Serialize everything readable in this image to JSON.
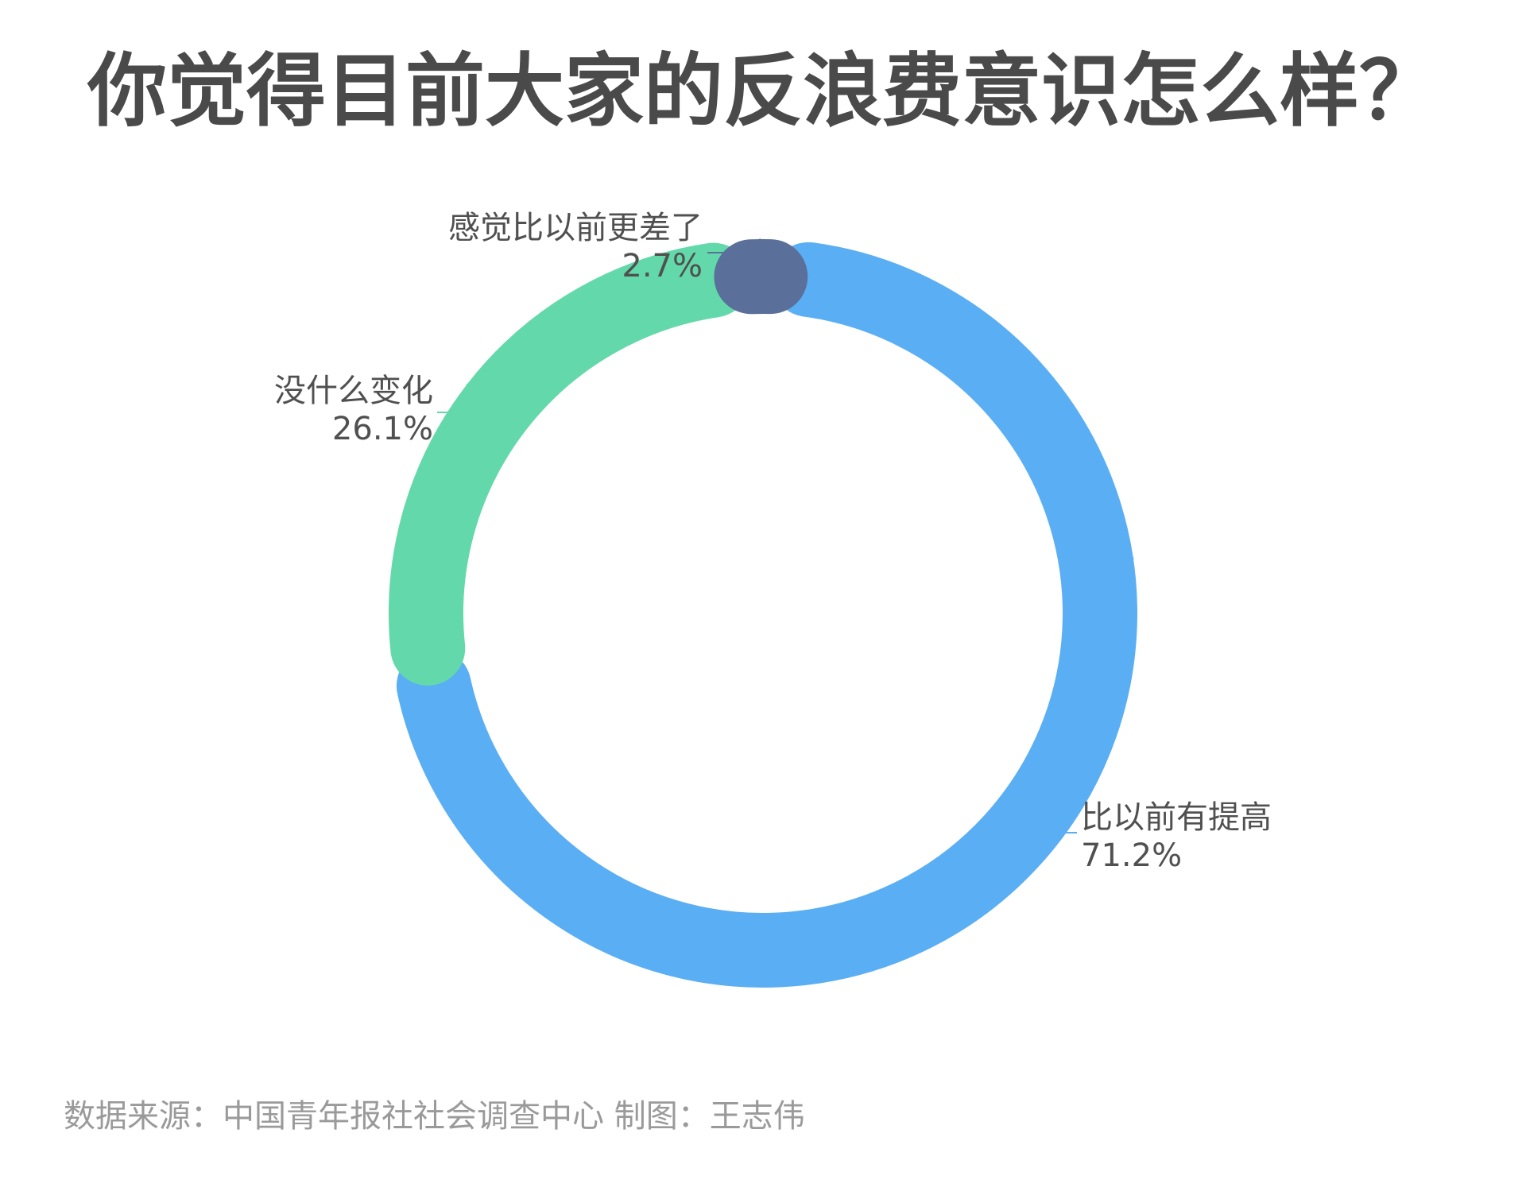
{
  "title": "你觉得目前大家的反浪费意识怎么样？",
  "source_text": "数据来源：中国青年报社社会调查中心 制图：王志伟",
  "chart_data": {
    "type": "pie",
    "variant": "donut",
    "title": "你觉得目前大家的反浪费意识怎么样？",
    "slices": [
      {
        "name": "比以前有提高",
        "value": 71.2,
        "label": "71.2%",
        "color": "#5aaef4"
      },
      {
        "name": "没什么变化",
        "value": 26.1,
        "label": "26.1%",
        "color": "#63d9ab"
      },
      {
        "name": "感觉比以前更差了",
        "value": 2.7,
        "label": "2.7%",
        "color": "#5a6f99"
      }
    ],
    "legend": "none"
  }
}
